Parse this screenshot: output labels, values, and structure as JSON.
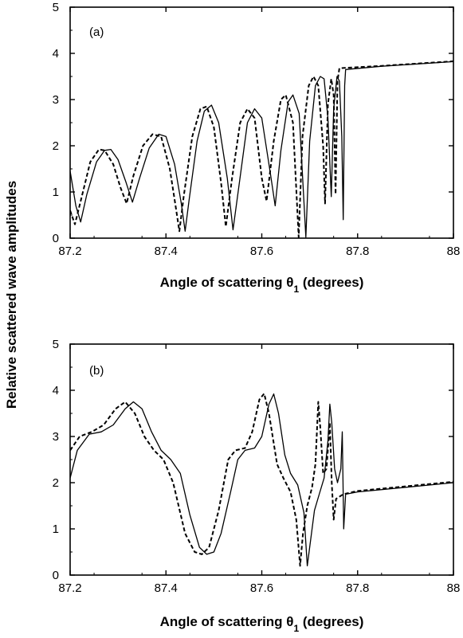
{
  "figure": {
    "ylabel": "Relative scattered wave amplitudes"
  },
  "chart_data": [
    {
      "type": "line",
      "panel_label": "(a)",
      "xlabel": "Angle of scattering θ₁ (degrees)",
      "xlim": [
        87.2,
        88.0
      ],
      "ylim": [
        0,
        5
      ],
      "x_ticks": [
        "87.2",
        "87.4",
        "87.6",
        "87.8",
        "88"
      ],
      "y_ticks": [
        "0",
        "1",
        "2",
        "3",
        "4",
        "5"
      ],
      "grid": false,
      "series": [
        {
          "style": "solid",
          "points": [
            [
              87.2,
              1.45
            ],
            [
              87.212,
              0.7
            ],
            [
              87.222,
              0.35
            ],
            [
              87.235,
              0.95
            ],
            [
              87.255,
              1.65
            ],
            [
              87.272,
              1.9
            ],
            [
              87.285,
              1.92
            ],
            [
              87.3,
              1.7
            ],
            [
              87.317,
              1.2
            ],
            [
              87.33,
              0.78
            ],
            [
              87.345,
              1.3
            ],
            [
              87.365,
              1.95
            ],
            [
              87.385,
              2.25
            ],
            [
              87.4,
              2.2
            ],
            [
              87.418,
              1.6
            ],
            [
              87.432,
              0.75
            ],
            [
              87.44,
              0.15
            ],
            [
              87.448,
              0.8
            ],
            [
              87.465,
              2.1
            ],
            [
              87.48,
              2.75
            ],
            [
              87.495,
              2.88
            ],
            [
              87.51,
              2.5
            ],
            [
              87.528,
              1.3
            ],
            [
              87.54,
              0.18
            ],
            [
              87.552,
              1.1
            ],
            [
              87.57,
              2.5
            ],
            [
              87.585,
              2.8
            ],
            [
              87.6,
              2.6
            ],
            [
              87.618,
              1.4
            ],
            [
              87.628,
              0.7
            ],
            [
              87.64,
              1.9
            ],
            [
              87.655,
              2.95
            ],
            [
              87.665,
              3.1
            ],
            [
              87.678,
              2.7
            ],
            [
              87.692,
              0.02
            ],
            [
              87.7,
              2.1
            ],
            [
              87.712,
              3.3
            ],
            [
              87.722,
              3.5
            ],
            [
              87.73,
              3.45
            ],
            [
              87.738,
              2.6
            ],
            [
              87.745,
              0.9
            ],
            [
              87.75,
              2.8
            ],
            [
              87.757,
              3.5
            ],
            [
              87.762,
              3.4
            ],
            [
              87.767,
              2.2
            ],
            [
              87.77,
              0.4
            ],
            [
              87.773,
              3.3
            ],
            [
              87.775,
              3.65
            ],
            [
              87.85,
              3.72
            ],
            [
              88.0,
              3.82
            ]
          ]
        },
        {
          "style": "dashed",
          "points": [
            [
              87.2,
              0.6
            ],
            [
              87.21,
              0.3
            ],
            [
              87.222,
              0.8
            ],
            [
              87.242,
              1.65
            ],
            [
              87.26,
              1.92
            ],
            [
              87.272,
              1.9
            ],
            [
              87.29,
              1.6
            ],
            [
              87.305,
              1.1
            ],
            [
              87.318,
              0.75
            ],
            [
              87.332,
              1.35
            ],
            [
              87.352,
              2.0
            ],
            [
              87.372,
              2.25
            ],
            [
              87.39,
              2.2
            ],
            [
              87.408,
              1.5
            ],
            [
              87.42,
              0.7
            ],
            [
              87.428,
              0.15
            ],
            [
              87.437,
              0.9
            ],
            [
              87.455,
              2.2
            ],
            [
              87.472,
              2.8
            ],
            [
              87.485,
              2.85
            ],
            [
              87.5,
              2.4
            ],
            [
              87.515,
              1.2
            ],
            [
              87.525,
              0.25
            ],
            [
              87.538,
              1.3
            ],
            [
              87.555,
              2.5
            ],
            [
              87.57,
              2.8
            ],
            [
              87.585,
              2.6
            ],
            [
              87.6,
              1.3
            ],
            [
              87.61,
              0.8
            ],
            [
              87.625,
              2.1
            ],
            [
              87.64,
              3.0
            ],
            [
              87.65,
              3.1
            ],
            [
              87.665,
              2.5
            ],
            [
              87.677,
              0.02
            ],
            [
              87.685,
              2.2
            ],
            [
              87.698,
              3.3
            ],
            [
              87.708,
              3.5
            ],
            [
              87.718,
              3.3
            ],
            [
              87.728,
              2.0
            ],
            [
              87.732,
              0.75
            ],
            [
              87.738,
              2.9
            ],
            [
              87.745,
              3.45
            ],
            [
              87.75,
              3.1
            ],
            [
              87.754,
              0.95
            ],
            [
              87.758,
              3.4
            ],
            [
              87.762,
              3.68
            ],
            [
              87.85,
              3.73
            ],
            [
              88.0,
              3.83
            ]
          ]
        }
      ]
    },
    {
      "type": "line",
      "panel_label": "(b)",
      "xlabel": "Angle of scattering θ₁ (degrees)",
      "xlim": [
        87.2,
        88.0
      ],
      "ylim": [
        0,
        5
      ],
      "x_ticks": [
        "87.2",
        "87.4",
        "87.6",
        "87.8",
        "88"
      ],
      "y_ticks": [
        "0",
        "1",
        "2",
        "3",
        "4",
        "5"
      ],
      "grid": false,
      "series": [
        {
          "style": "solid",
          "points": [
            [
              87.2,
              2.1
            ],
            [
              87.215,
              2.7
            ],
            [
              87.24,
              3.05
            ],
            [
              87.265,
              3.1
            ],
            [
              87.29,
              3.25
            ],
            [
              87.315,
              3.6
            ],
            [
              87.332,
              3.75
            ],
            [
              87.35,
              3.6
            ],
            [
              87.37,
              3.1
            ],
            [
              87.39,
              2.7
            ],
            [
              87.41,
              2.5
            ],
            [
              87.43,
              2.2
            ],
            [
              87.45,
              1.3
            ],
            [
              87.47,
              0.6
            ],
            [
              87.485,
              0.45
            ],
            [
              87.5,
              0.5
            ],
            [
              87.515,
              0.9
            ],
            [
              87.535,
              1.8
            ],
            [
              87.55,
              2.5
            ],
            [
              87.565,
              2.7
            ],
            [
              87.585,
              2.75
            ],
            [
              87.6,
              3.0
            ],
            [
              87.615,
              3.7
            ],
            [
              87.625,
              3.92
            ],
            [
              87.635,
              3.5
            ],
            [
              87.648,
              2.6
            ],
            [
              87.66,
              2.2
            ],
            [
              87.675,
              1.95
            ],
            [
              87.688,
              1.35
            ],
            [
              87.695,
              0.2
            ],
            [
              87.7,
              0.6
            ],
            [
              87.71,
              1.4
            ],
            [
              87.72,
              1.75
            ],
            [
              87.73,
              2.1
            ],
            [
              87.738,
              2.9
            ],
            [
              87.742,
              3.7
            ],
            [
              87.746,
              3.3
            ],
            [
              87.752,
              2.3
            ],
            [
              87.758,
              2.0
            ],
            [
              87.765,
              2.3
            ],
            [
              87.768,
              3.1
            ],
            [
              87.771,
              1.0
            ],
            [
              87.775,
              1.75
            ],
            [
              87.8,
              1.8
            ],
            [
              87.9,
              1.9
            ],
            [
              88.0,
              2.0
            ]
          ]
        },
        {
          "style": "dashed",
          "points": [
            [
              87.2,
              2.7
            ],
            [
              87.22,
              3.0
            ],
            [
              87.245,
              3.1
            ],
            [
              87.27,
              3.25
            ],
            [
              87.295,
              3.6
            ],
            [
              87.315,
              3.75
            ],
            [
              87.335,
              3.5
            ],
            [
              87.355,
              3.0
            ],
            [
              87.375,
              2.7
            ],
            [
              87.395,
              2.5
            ],
            [
              87.415,
              2.0
            ],
            [
              87.44,
              0.9
            ],
            [
              87.46,
              0.5
            ],
            [
              87.475,
              0.45
            ],
            [
              87.49,
              0.6
            ],
            [
              87.51,
              1.4
            ],
            [
              87.53,
              2.5
            ],
            [
              87.545,
              2.7
            ],
            [
              87.565,
              2.75
            ],
            [
              87.58,
              3.1
            ],
            [
              87.595,
              3.8
            ],
            [
              87.605,
              3.93
            ],
            [
              87.615,
              3.5
            ],
            [
              87.632,
              2.4
            ],
            [
              87.645,
              2.1
            ],
            [
              87.66,
              1.8
            ],
            [
              87.672,
              1.2
            ],
            [
              87.68,
              0.2
            ],
            [
              87.686,
              0.9
            ],
            [
              87.695,
              1.5
            ],
            [
              87.705,
              1.9
            ],
            [
              87.712,
              2.4
            ],
            [
              87.718,
              3.75
            ],
            [
              87.722,
              3.2
            ],
            [
              87.728,
              2.2
            ],
            [
              87.735,
              2.3
            ],
            [
              87.742,
              3.3
            ],
            [
              87.746,
              2.0
            ],
            [
              87.75,
              1.2
            ],
            [
              87.755,
              1.65
            ],
            [
              87.77,
              1.75
            ],
            [
              87.8,
              1.82
            ],
            [
              87.9,
              1.92
            ],
            [
              88.0,
              2.02
            ]
          ]
        }
      ]
    }
  ]
}
